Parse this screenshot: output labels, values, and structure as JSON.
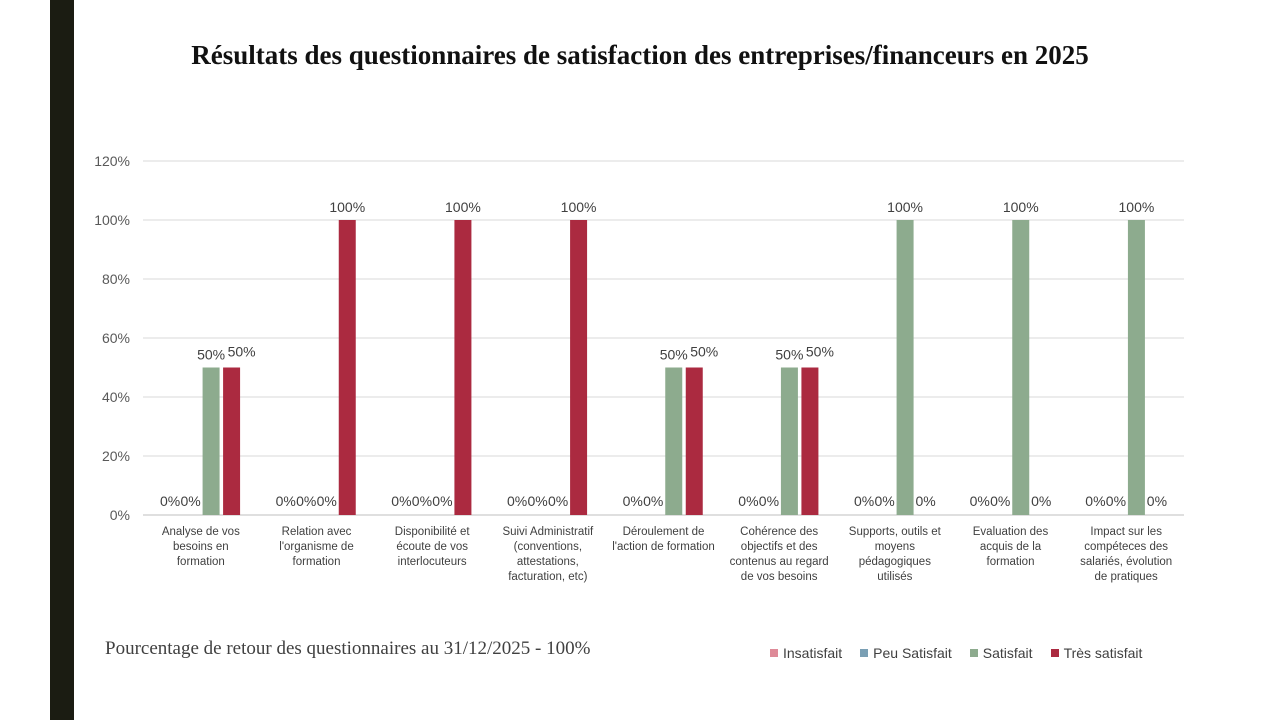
{
  "slide": {
    "title": "Résultats des questionnaires de satisfaction des entreprises/financeurs en 2025",
    "footnote": "Pourcentage de retour des questionnaires au 31/12/2025 - 100%"
  },
  "chart_data": {
    "type": "bar",
    "title": "",
    "xlabel": "",
    "ylabel": "",
    "ylim": [
      0,
      120
    ],
    "yticks": [
      0,
      20,
      40,
      60,
      80,
      100,
      120
    ],
    "ytick_labels": [
      "0%",
      "20%",
      "40%",
      "60%",
      "80%",
      "100%",
      "120%"
    ],
    "grid": true,
    "legend_position": "bottom-right",
    "categories": [
      [
        "Analyse de vos",
        "besoins en",
        "formation"
      ],
      [
        "Relation avec",
        "l'organisme de",
        "formation"
      ],
      [
        "Disponibilité et",
        "écoute de vos",
        "interlocuteurs"
      ],
      [
        "Suivi Administratif",
        "(conventions,",
        "attestations,",
        "facturation, etc)"
      ],
      [
        "Déroulement de",
        "l'action de formation"
      ],
      [
        "Cohérence des",
        "objectifs et des",
        "contenus au regard",
        "de vos besoins"
      ],
      [
        "Supports, outils et",
        "moyens",
        "pédagogiques",
        "utilisés"
      ],
      [
        "Evaluation des",
        "acquis de la",
        "formation"
      ],
      [
        "Impact sur les",
        "compéteces des",
        "salariés, évolution",
        "de pratiques"
      ]
    ],
    "series": [
      {
        "name": "Insatisfait",
        "color": "#de8a98",
        "values": [
          0,
          0,
          0,
          0,
          0,
          0,
          0,
          0,
          0
        ]
      },
      {
        "name": "Peu Satisfait",
        "color": "#7a9fb4",
        "values": [
          0,
          0,
          0,
          0,
          0,
          0,
          0,
          0,
          0
        ]
      },
      {
        "name": "Satisfait",
        "color": "#8dab8e",
        "values": [
          50,
          0,
          0,
          0,
          50,
          50,
          100,
          100,
          100
        ]
      },
      {
        "name": "Très satisfait",
        "color": "#ab2a40",
        "values": [
          50,
          100,
          100,
          100,
          50,
          50,
          0,
          0,
          0
        ]
      }
    ],
    "data_labels": [
      [
        "0%",
        "0%",
        "50%",
        "50%"
      ],
      [
        "0%",
        "0%",
        "0%",
        "100%"
      ],
      [
        "0%",
        "0%",
        "0%",
        "100%"
      ],
      [
        "0%",
        "0%",
        "0%",
        "100%"
      ],
      [
        "0%",
        "0%",
        "50%",
        "50%"
      ],
      [
        "0%",
        "0%",
        "50%",
        "50%"
      ],
      [
        "0%",
        "0%",
        "100%",
        "0%"
      ],
      [
        "0%",
        "0%",
        "100%",
        "0%"
      ],
      [
        "0%",
        "0%",
        "100%",
        "0%"
      ]
    ]
  }
}
